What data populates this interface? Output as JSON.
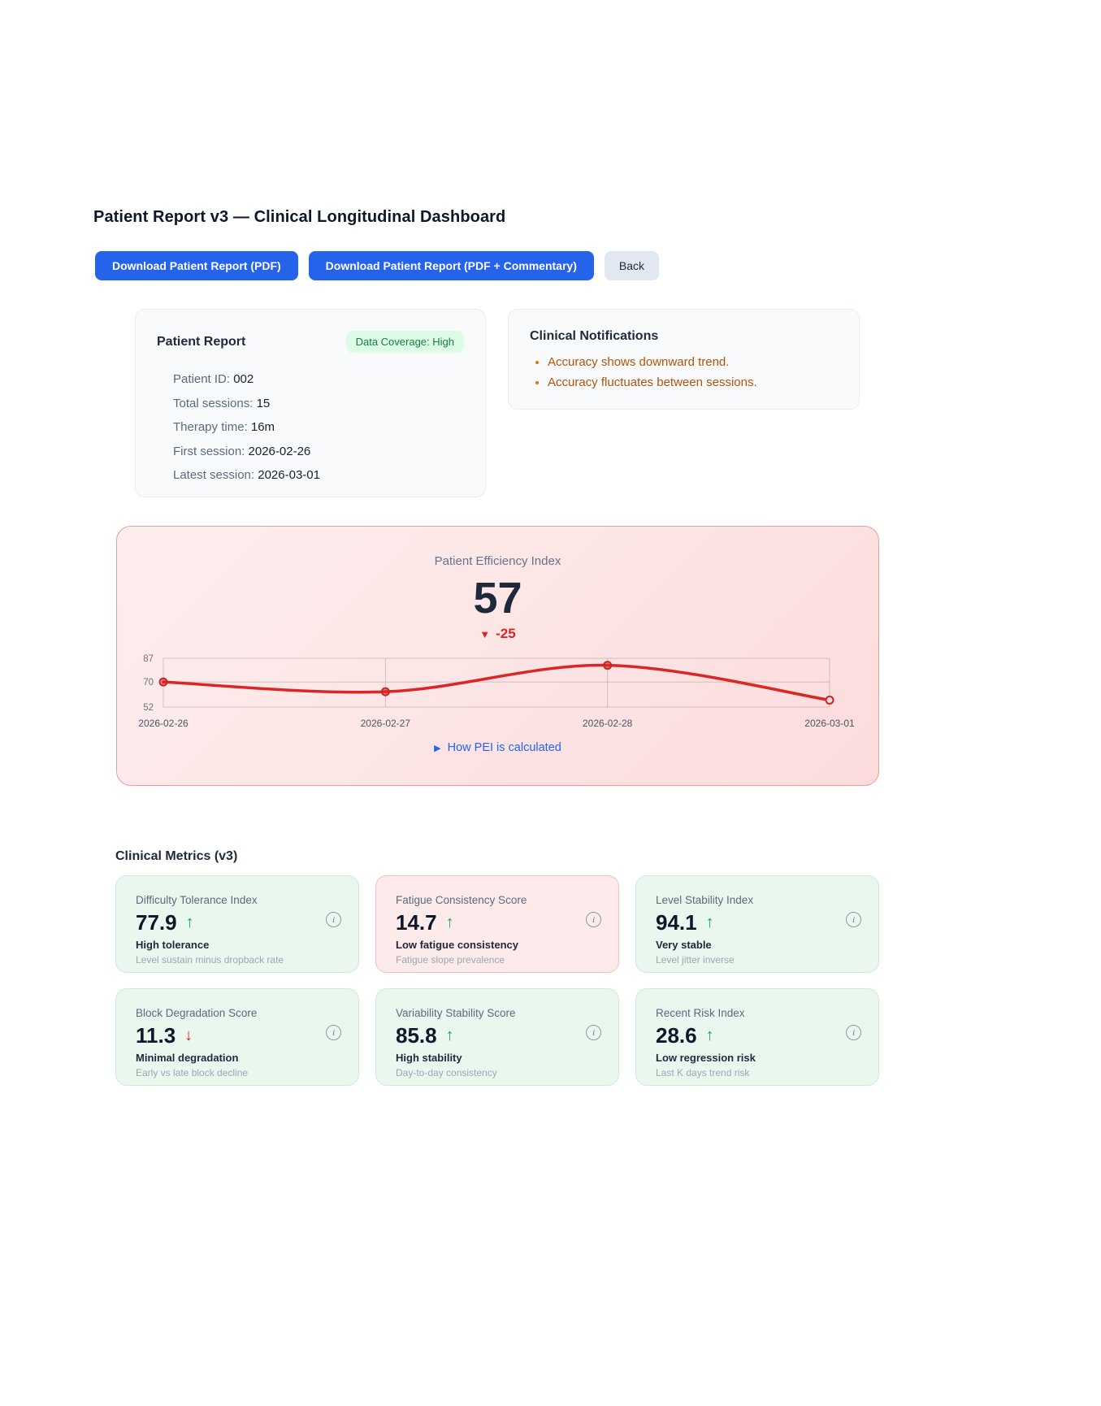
{
  "page": {
    "title": "Patient Report v3 — Clinical Longitudinal Dashboard"
  },
  "toolbar": {
    "download_pdf_label": "Download Patient Report (PDF)",
    "download_pdf_commentary_label": "Download Patient Report (PDF + Commentary)",
    "back_label": "Back"
  },
  "patient_card": {
    "title": "Patient Report",
    "badge": "Data Coverage: High",
    "fields": [
      {
        "label": "Patient ID:",
        "value": "002"
      },
      {
        "label": "Total sessions:",
        "value": "15"
      },
      {
        "label": "Therapy time:",
        "value": "16m"
      },
      {
        "label": "First session:",
        "value": "2026-02-26"
      },
      {
        "label": "Latest session:",
        "value": "2026-03-01"
      }
    ]
  },
  "notifications": {
    "title": "Clinical Notifications",
    "items": [
      "Accuracy shows downward trend.",
      "Accuracy fluctuates between sessions."
    ]
  },
  "pei": {
    "title": "Patient Efficiency Index",
    "value": "57",
    "delta_marker": "▼",
    "delta": "-25",
    "details_marker": "▶",
    "details_label": "How PEI is calculated"
  },
  "chart_data": {
    "type": "line",
    "title": "Patient Efficiency Index",
    "x": [
      "2026-02-26",
      "2026-02-27",
      "2026-02-28",
      "2026-03-01"
    ],
    "series": [
      {
        "name": "PEI",
        "values": [
          70,
          63,
          82,
          57
        ]
      }
    ],
    "y_ticks": [
      87,
      70,
      52
    ],
    "ylim": [
      52,
      87
    ],
    "line_color": "#dc2626",
    "grid": true,
    "legend": false
  },
  "metrics": {
    "heading": "Clinical Metrics (v3)",
    "info_icon": "i",
    "cards": [
      {
        "title": "Difficulty Tolerance Index",
        "value": "77.9",
        "arrow": "↑",
        "trend": "up",
        "tone": "green",
        "subtitle": "High tolerance",
        "description": "Level sustain minus dropback rate"
      },
      {
        "title": "Fatigue Consistency Score",
        "value": "14.7",
        "arrow": "↑",
        "trend": "up",
        "tone": "red",
        "subtitle": "Low fatigue consistency",
        "description": "Fatigue slope prevalence"
      },
      {
        "title": "Level Stability Index",
        "value": "94.1",
        "arrow": "↑",
        "trend": "up",
        "tone": "green",
        "subtitle": "Very stable",
        "description": "Level jitter inverse"
      },
      {
        "title": "Block Degradation Score",
        "value": "11.3",
        "arrow": "↓",
        "trend": "down",
        "tone": "green",
        "subtitle": "Minimal degradation",
        "description": "Early vs late block decline"
      },
      {
        "title": "Variability Stability Score",
        "value": "85.8",
        "arrow": "↑",
        "trend": "up",
        "tone": "green",
        "subtitle": "High stability",
        "description": "Day-to-day consistency"
      },
      {
        "title": "Recent Risk Index",
        "value": "28.6",
        "arrow": "↑",
        "trend": "up",
        "tone": "green",
        "subtitle": "Low regression risk",
        "description": "Last K days trend risk"
      }
    ]
  },
  "colors": {
    "primary_button": "#2563eb",
    "accent_red": "#dc2626",
    "accent_green": "#16a34a",
    "notification_text": "#b45309",
    "badge_bg": "#dcfce7",
    "badge_text": "#15803d",
    "link_blue": "#2563eb",
    "pei_panel_border": "#f49c9c"
  }
}
